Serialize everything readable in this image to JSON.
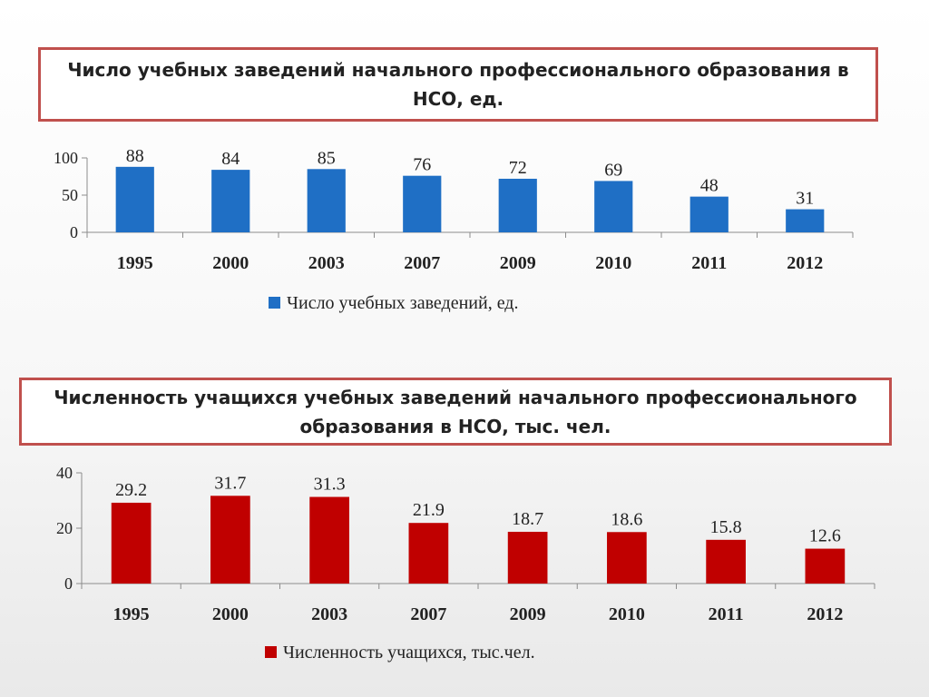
{
  "chart_data": [
    {
      "type": "bar",
      "title": "Число учебных заведений начального профессионального образования в НСО, ед.",
      "categories": [
        "1995",
        "2000",
        "2003",
        "2007",
        "2009",
        "2010",
        "2011",
        "2012"
      ],
      "series": [
        {
          "name": "Число учебных заведений, ед.",
          "values": [
            88,
            84,
            85,
            76,
            72,
            69,
            48,
            31
          ]
        }
      ],
      "data_labels": [
        "88",
        "84",
        "85",
        "76",
        "72",
        "69",
        "48",
        "31"
      ],
      "yticks": [
        "0",
        "50",
        "100"
      ],
      "ylim": [
        0,
        100
      ],
      "legend": "bottom",
      "grid": false,
      "color": "#1f6fc5"
    },
    {
      "type": "bar",
      "title": "Численность учащихся учебных заведений начального профессионального образования в НСО, тыс. чел.",
      "categories": [
        "1995",
        "2000",
        "2003",
        "2007",
        "2009",
        "2010",
        "2011",
        "2012"
      ],
      "series": [
        {
          "name": "Численность учащихся, тыс.чел.",
          "values": [
            29.2,
            31.7,
            31.3,
            21.9,
            18.7,
            18.6,
            15.8,
            12.6
          ]
        }
      ],
      "data_labels": [
        "29.2",
        "31.7",
        "31.3",
        "21.9",
        "18.7",
        "18.6",
        "15.8",
        "12.6"
      ],
      "yticks": [
        "0",
        "20",
        "40"
      ],
      "ylim": [
        0,
        40
      ],
      "legend": "bottom",
      "grid": false,
      "color": "#c00000"
    }
  ]
}
